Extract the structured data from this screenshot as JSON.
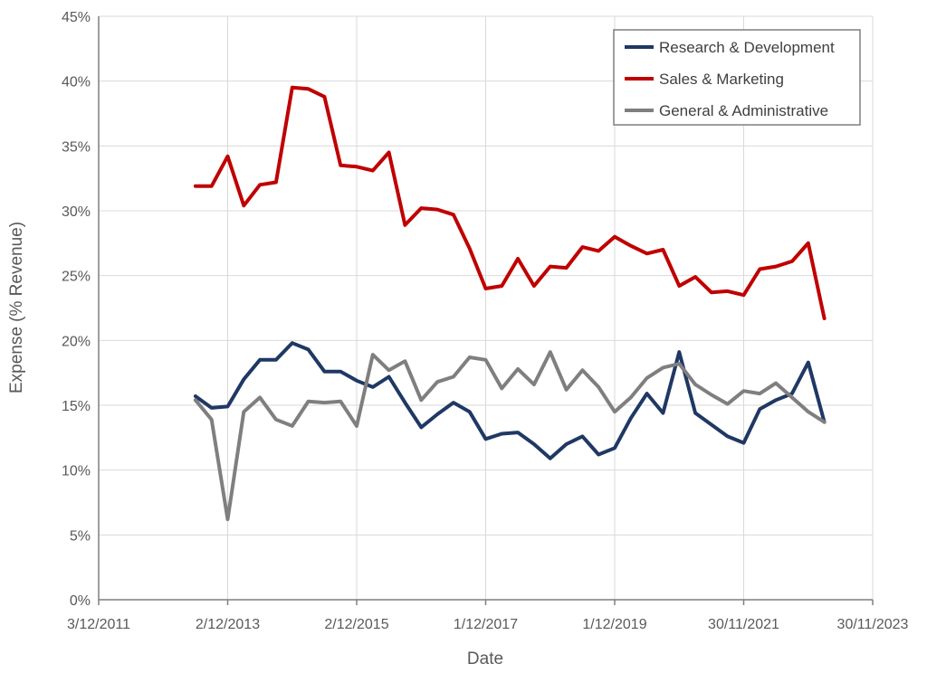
{
  "chart_data": {
    "type": "line",
    "title": "",
    "xlabel": "Date",
    "ylabel": "Expense (% Revenue)",
    "ylim": [
      0,
      45
    ],
    "yticks": [
      0,
      5,
      10,
      15,
      20,
      25,
      30,
      35,
      40,
      45
    ],
    "ytick_labels": [
      "0%",
      "5%",
      "10%",
      "15%",
      "20%",
      "25%",
      "30%",
      "35%",
      "40%",
      "45%"
    ],
    "xlim": [
      0,
      12
    ],
    "xticks": [
      0,
      2,
      4,
      6,
      8,
      10,
      12
    ],
    "xtick_labels": [
      "3/12/2011",
      "2/12/2013",
      "2/12/2015",
      "1/12/2017",
      "1/12/2019",
      "30/11/2021",
      "30/11/2023"
    ],
    "x_unit": "years since 3/12/2011",
    "grid": true,
    "legend_position": "top-right",
    "x": [
      1.5,
      1.75,
      2.0,
      2.25,
      2.5,
      2.75,
      3.0,
      3.25,
      3.5,
      3.75,
      4.0,
      4.25,
      4.5,
      4.75,
      5.0,
      5.25,
      5.5,
      5.75,
      6.0,
      6.25,
      6.5,
      6.75,
      7.0,
      7.25,
      7.5,
      7.75,
      8.0,
      8.25,
      8.5,
      8.75,
      9.0,
      9.25,
      9.5,
      9.75,
      10.0,
      10.25,
      10.5,
      10.75,
      11.0,
      11.25
    ],
    "series": [
      {
        "name": "Research & Development",
        "color": "#1f3864",
        "values": [
          15.7,
          14.8,
          14.9,
          17.0,
          18.5,
          18.5,
          19.8,
          19.3,
          17.6,
          17.6,
          16.9,
          16.4,
          17.2,
          15.2,
          13.3,
          14.3,
          15.2,
          14.5,
          12.4,
          12.8,
          12.9,
          12.0,
          10.9,
          12.0,
          12.6,
          11.2,
          11.7,
          14.0,
          15.9,
          14.4,
          19.1,
          14.4,
          13.5,
          12.6,
          12.1,
          14.7,
          15.4,
          15.9,
          18.3,
          13.7
        ]
      },
      {
        "name": "Sales & Marketing",
        "color": "#c00000",
        "values": [
          31.9,
          31.9,
          34.2,
          30.4,
          32.0,
          32.2,
          39.5,
          39.4,
          38.8,
          33.5,
          33.4,
          33.1,
          34.5,
          28.9,
          30.2,
          30.1,
          29.7,
          27.1,
          24.0,
          24.2,
          26.3,
          24.2,
          25.7,
          25.6,
          27.2,
          26.9,
          28.0,
          27.3,
          26.7,
          27.0,
          24.2,
          24.9,
          23.7,
          23.8,
          23.5,
          25.5,
          25.7,
          26.1,
          27.5,
          21.7
        ]
      },
      {
        "name": "General & Administrative",
        "color": "#7f7f7f",
        "values": [
          15.4,
          13.9,
          6.2,
          14.5,
          15.6,
          13.9,
          13.4,
          15.3,
          15.2,
          15.3,
          13.4,
          18.9,
          17.7,
          18.4,
          15.4,
          16.8,
          17.2,
          18.7,
          18.5,
          16.3,
          17.8,
          16.6,
          19.1,
          16.2,
          17.7,
          16.4,
          14.5,
          15.6,
          17.1,
          17.9,
          18.2,
          16.6,
          15.8,
          15.1,
          16.1,
          15.9,
          16.7,
          15.6,
          14.5,
          13.7
        ]
      }
    ]
  }
}
